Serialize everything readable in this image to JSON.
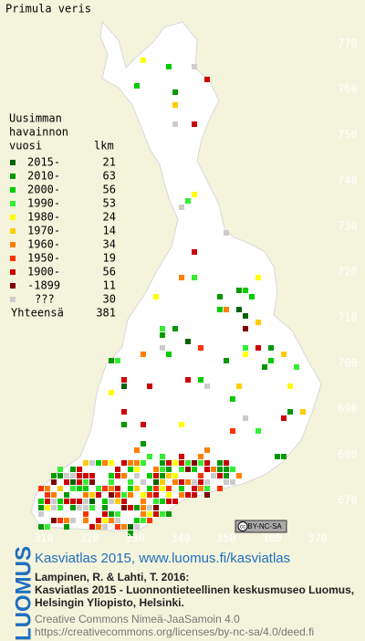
{
  "title": "Primula veris",
  "legend": {
    "title": [
      "Uusimman",
      "havainnon",
      "vuosi"
    ],
    "count_header": "lkm",
    "rows": [
      {
        "label": "2015-",
        "count": 21,
        "color": "#006400"
      },
      {
        "label": "2010-",
        "count": 63,
        "color": "#009900"
      },
      {
        "label": "2000-",
        "count": 56,
        "color": "#00cc00"
      },
      {
        "label": "1990-",
        "count": 53,
        "color": "#33ee33"
      },
      {
        "label": "1980-",
        "count": 24,
        "color": "#ffff00"
      },
      {
        "label": "1970-",
        "count": 14,
        "color": "#ffcc00"
      },
      {
        "label": "1960-",
        "count": 34,
        "color": "#ff8000"
      },
      {
        "label": "1950-",
        "count": 19,
        "color": "#ff3300"
      },
      {
        "label": "1900-",
        "count": 56,
        "color": "#cc0000"
      },
      {
        "label": "-1899",
        "count": 11,
        "color": "#800000"
      },
      {
        "label": "???",
        "count": 30,
        "color": "#cccccc"
      }
    ],
    "total_label": "Yhteensä",
    "total": 381
  },
  "map": {
    "xticks": [
      310,
      320,
      330,
      340,
      350,
      360,
      370
    ],
    "yticks": [
      670,
      680,
      690,
      700,
      710,
      720,
      730,
      740,
      750,
      760,
      770
    ]
  },
  "cc_badge": "BY-NC-SA",
  "logo": "LUOMUS",
  "footer": {
    "link": "Kasviatlas 2015, www.luomus.fi/kasviatlas",
    "citation": [
      "Lampinen, R. & Lahti, T. 2016:",
      "Kasviatlas 2015 - Luonnontieteellinen keskusmuseo Luomus,",
      "Helsingin Yliopisto, Helsinki."
    ],
    "license": [
      "Creative Commons Nimeä-JaaSamoin 4.0",
      "https://creativecommons.org/licenses/by-nc-sa/4.0/deed.fi"
    ]
  }
}
